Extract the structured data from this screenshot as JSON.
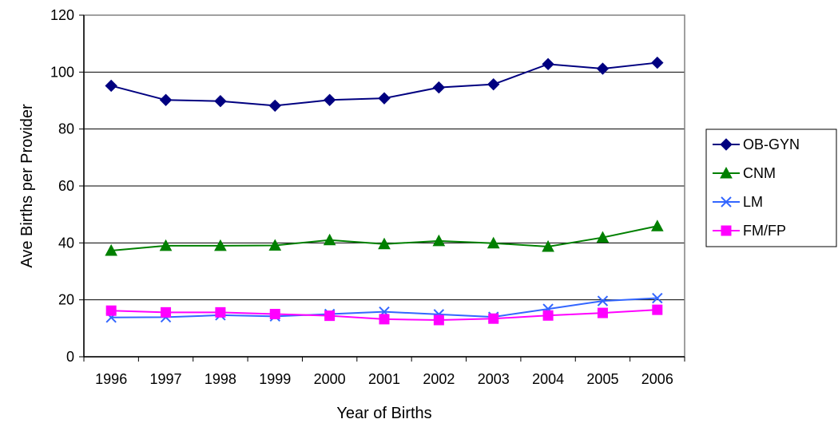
{
  "chart_data": {
    "type": "line",
    "x": [
      "1996",
      "1997",
      "1998",
      "1999",
      "2000",
      "2001",
      "2002",
      "2003",
      "2004",
      "2005",
      "2006"
    ],
    "xlabel": "Year of Births",
    "ylabel": "Ave Births per Provider",
    "ylim": [
      0,
      120
    ],
    "yticks": [
      "0",
      "20",
      "40",
      "60",
      "80",
      "100",
      "120"
    ],
    "grid": true,
    "legend_position": "right",
    "series": [
      {
        "name": "OB-GYN",
        "color": "#000080",
        "marker": "diamond",
        "values": [
          95.2,
          90.2,
          89.8,
          88.2,
          90.2,
          90.8,
          94.6,
          95.7,
          102.8,
          101.2,
          103.3
        ]
      },
      {
        "name": "CNM",
        "color": "#008000",
        "marker": "triangle",
        "values": [
          37.3,
          39.0,
          39.0,
          39.1,
          41.0,
          39.6,
          40.7,
          39.9,
          38.7,
          41.9,
          45.9
        ]
      },
      {
        "name": "LM",
        "color": "#3366ff",
        "marker": "x",
        "values": [
          13.8,
          13.9,
          14.6,
          14.2,
          15.0,
          15.8,
          14.9,
          14.0,
          16.8,
          19.6,
          20.6
        ]
      },
      {
        "name": "FM/FP",
        "color": "#ff00ff",
        "marker": "square",
        "values": [
          16.2,
          15.6,
          15.6,
          15.0,
          14.4,
          13.2,
          12.9,
          13.4,
          14.5,
          15.4,
          16.5
        ]
      }
    ]
  }
}
